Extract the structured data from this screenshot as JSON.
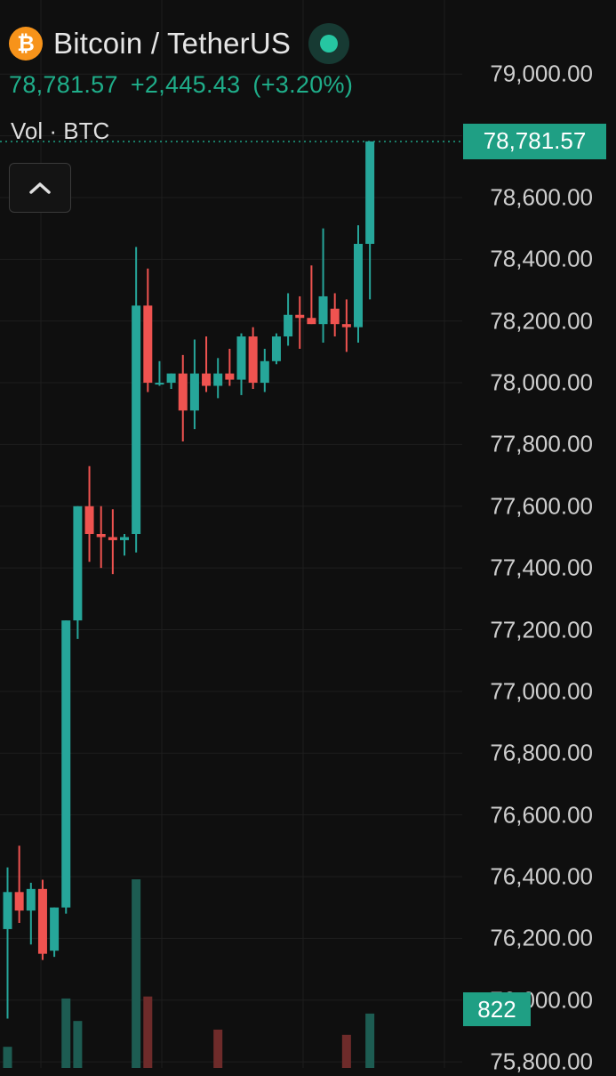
{
  "header": {
    "coin_symbol": "₿",
    "pair_title": "Bitcoin / TetherUS",
    "last_price": "78,781.57",
    "change_abs": "+2,445.43",
    "change_pct": "(+3.20%)",
    "volume_legend": "Vol · BTC"
  },
  "colors": {
    "up": "#26a69a",
    "down": "#ef5350",
    "accent": "#1f9f84",
    "background": "#0f0f0f",
    "coin": "#f7931a"
  },
  "current_price_label": "78,781.57",
  "volume_label": "822",
  "chart_data": {
    "type": "candlestick",
    "y_axis": {
      "ticks": [
        "79,000.00",
        "78,800.00",
        "78,600.00",
        "78,400.00",
        "78,200.00",
        "78,000.00",
        "77,800.00",
        "77,600.00",
        "77,400.00",
        "77,200.00",
        "77,000.00",
        "76,800.00",
        "76,600.00",
        "76,400.00",
        "76,200.00",
        "76,000.00",
        "75,800.00"
      ],
      "tick_values": [
        79000,
        78800,
        78600,
        78400,
        78200,
        78000,
        77800,
        77600,
        77400,
        77200,
        77000,
        76800,
        76600,
        76400,
        76200,
        76000,
        75800
      ],
      "range": [
        75780,
        79240
      ]
    },
    "last_price": 78781.57,
    "candles": [
      {
        "o": 76230,
        "h": 76430,
        "l": 75940,
        "c": 76350
      },
      {
        "o": 76350,
        "h": 76500,
        "l": 76250,
        "c": 76290
      },
      {
        "o": 76290,
        "h": 76380,
        "l": 76180,
        "c": 76360
      },
      {
        "o": 76360,
        "h": 76390,
        "l": 76130,
        "c": 76150
      },
      {
        "o": 76160,
        "h": 76300,
        "l": 76140,
        "c": 76300
      },
      {
        "o": 76300,
        "h": 77230,
        "l": 76280,
        "c": 77230
      },
      {
        "o": 77230,
        "h": 77600,
        "l": 77170,
        "c": 77600
      },
      {
        "o": 77600,
        "h": 77730,
        "l": 77420,
        "c": 77510
      },
      {
        "o": 77510,
        "h": 77600,
        "l": 77400,
        "c": 77500
      },
      {
        "o": 77500,
        "h": 77590,
        "l": 77380,
        "c": 77490
      },
      {
        "o": 77490,
        "h": 77510,
        "l": 77440,
        "c": 77500
      },
      {
        "o": 77510,
        "h": 78440,
        "l": 77450,
        "c": 78250
      },
      {
        "o": 78250,
        "h": 78370,
        "l": 77970,
        "c": 78000
      },
      {
        "o": 78000,
        "h": 78070,
        "l": 77990,
        "c": 78000
      },
      {
        "o": 78000,
        "h": 78030,
        "l": 77980,
        "c": 78030
      },
      {
        "o": 78030,
        "h": 78090,
        "l": 77810,
        "c": 77910
      },
      {
        "o": 77910,
        "h": 78140,
        "l": 77850,
        "c": 78030
      },
      {
        "o": 78030,
        "h": 78150,
        "l": 77970,
        "c": 77990
      },
      {
        "o": 77990,
        "h": 78080,
        "l": 77950,
        "c": 78030
      },
      {
        "o": 78030,
        "h": 78110,
        "l": 77990,
        "c": 78010
      },
      {
        "o": 78010,
        "h": 78160,
        "l": 77960,
        "c": 78150
      },
      {
        "o": 78150,
        "h": 78180,
        "l": 77980,
        "c": 78000
      },
      {
        "o": 78000,
        "h": 78110,
        "l": 77970,
        "c": 78070
      },
      {
        "o": 78070,
        "h": 78160,
        "l": 78060,
        "c": 78150
      },
      {
        "o": 78150,
        "h": 78290,
        "l": 78120,
        "c": 78220
      },
      {
        "o": 78220,
        "h": 78280,
        "l": 78110,
        "c": 78210
      },
      {
        "o": 78210,
        "h": 78380,
        "l": 78190,
        "c": 78190
      },
      {
        "o": 78190,
        "h": 78500,
        "l": 78130,
        "c": 78280
      },
      {
        "o": 78240,
        "h": 78290,
        "l": 78150,
        "c": 78190
      },
      {
        "o": 78190,
        "h": 78270,
        "l": 78100,
        "c": 78180
      },
      {
        "o": 78180,
        "h": 78510,
        "l": 78130,
        "c": 78450
      },
      {
        "o": 78450,
        "h": 78782,
        "l": 78270,
        "c": 78782
      }
    ],
    "volumes": [
      {
        "v": 320,
        "up": true
      },
      {
        "v": 0,
        "up": false
      },
      {
        "v": 0,
        "up": false
      },
      {
        "v": 0,
        "up": false
      },
      {
        "v": 0,
        "up": true
      },
      {
        "v": 1050,
        "up": true
      },
      {
        "v": 710,
        "up": true
      },
      {
        "v": 0,
        "up": false
      },
      {
        "v": 0,
        "up": false
      },
      {
        "v": 0,
        "up": false
      },
      {
        "v": 0,
        "up": false
      },
      {
        "v": 2850,
        "up": true
      },
      {
        "v": 1080,
        "up": false
      },
      {
        "v": 0,
        "up": false
      },
      {
        "v": 0,
        "up": true
      },
      {
        "v": 0,
        "up": false
      },
      {
        "v": 0,
        "up": true
      },
      {
        "v": 0,
        "up": false
      },
      {
        "v": 580,
        "up": false
      },
      {
        "v": 0,
        "up": false
      },
      {
        "v": 0,
        "up": true
      },
      {
        "v": 0,
        "up": false
      },
      {
        "v": 0,
        "up": true
      },
      {
        "v": 0,
        "up": true
      },
      {
        "v": 0,
        "up": true
      },
      {
        "v": 0,
        "up": false
      },
      {
        "v": 0,
        "up": false
      },
      {
        "v": 0,
        "up": false
      },
      {
        "v": 0,
        "up": false
      },
      {
        "v": 500,
        "up": false
      },
      {
        "v": 0,
        "up": true
      },
      {
        "v": 822,
        "up": true
      }
    ]
  }
}
